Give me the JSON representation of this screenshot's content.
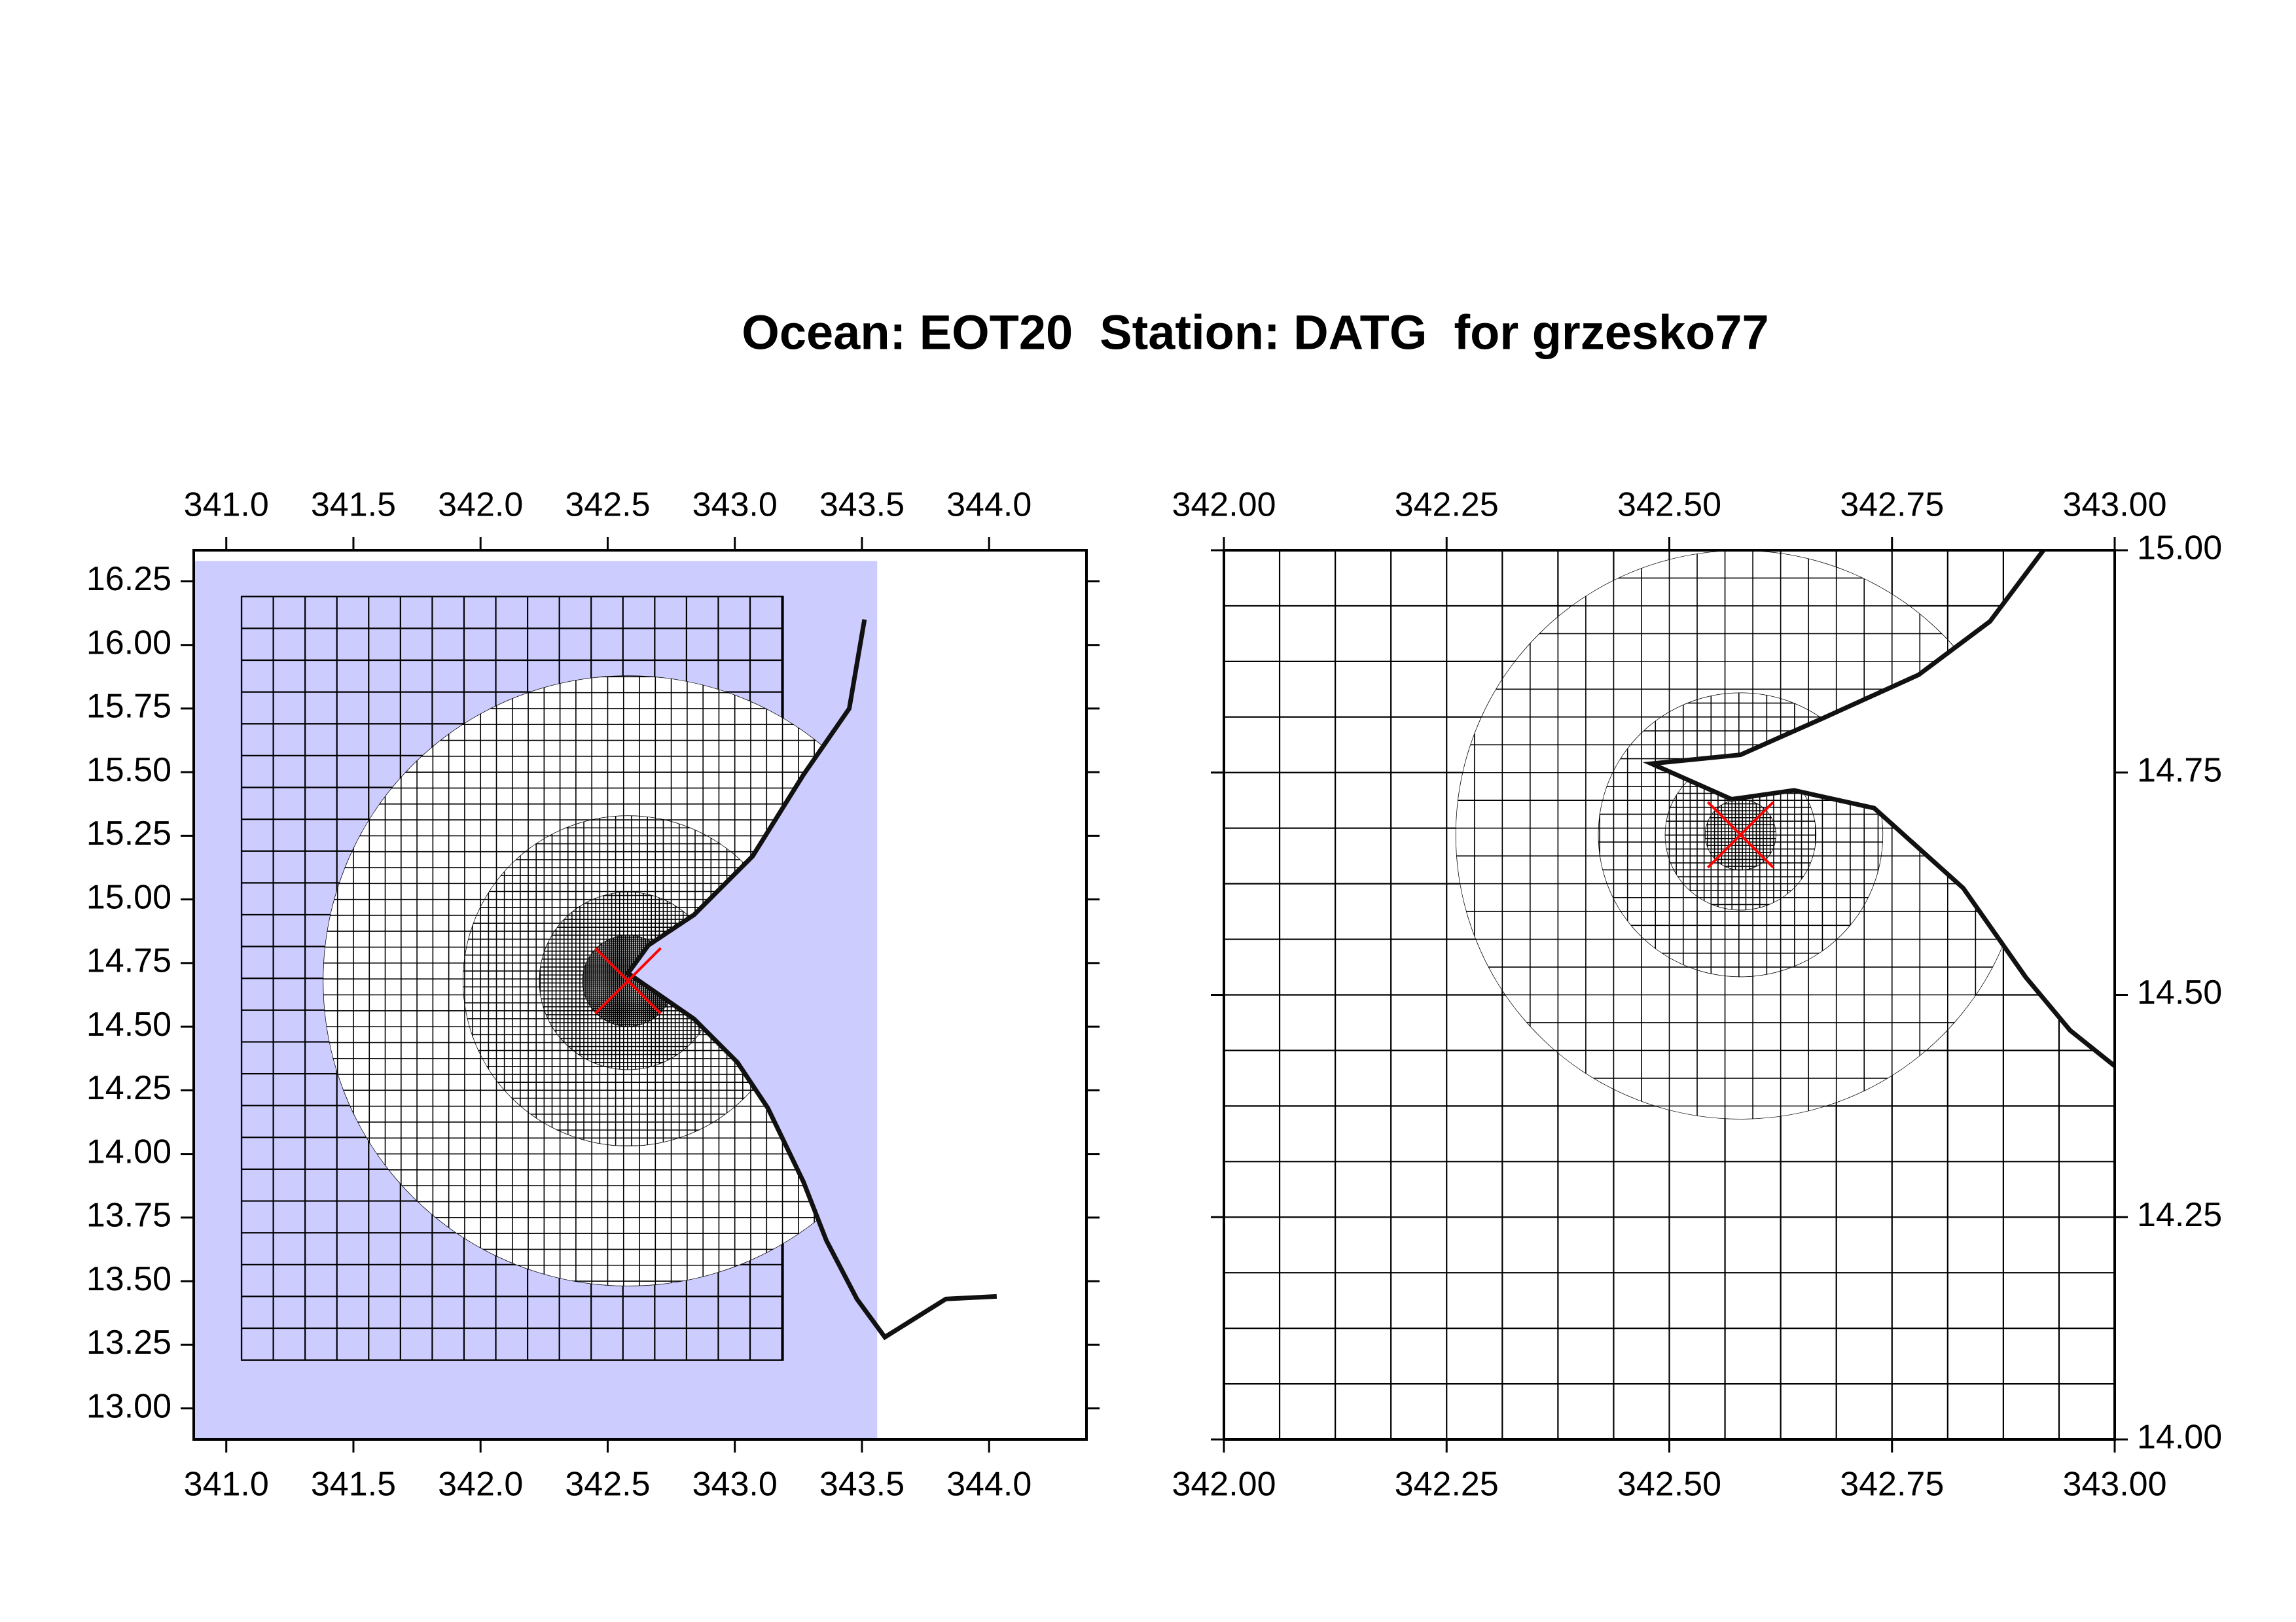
{
  "title": "Ocean: EOT20  Station: DATG  for grzesko77",
  "chart_data": [
    {
      "type": "mesh",
      "xlim": [
        340.872,
        344.383
      ],
      "ylim": [
        12.878,
        16.372
      ],
      "xticks": [
        {
          "value": 341,
          "label": "341.0"
        },
        341.5,
        {
          "value": 342,
          "label": "342.0"
        },
        342.5,
        {
          "value": 343,
          "label": "343.0"
        },
        343.5,
        {
          "value": 344,
          "label": "344.0"
        }
      ],
      "yticks": [
        {
          "value": 13,
          "label": "13.00"
        },
        13.25,
        {
          "value": 13.5,
          "label": "13.50"
        },
        13.75,
        {
          "value": 14,
          "label": "14.00"
        },
        14.25,
        {
          "value": 14.5,
          "label": "14.50"
        },
        14.75,
        {
          "value": 15,
          "label": "15.00"
        },
        15.25,
        {
          "value": 15.5,
          "label": "15.50"
        },
        15.75,
        {
          "value": 16,
          "label": "16.00"
        },
        16.25
      ],
      "y_axis_side": "left",
      "shaded_region": {
        "xlim": [
          340.872,
          343.56
        ],
        "ylim": [
          12.878,
          16.33
        ],
        "color": "#ccccff"
      },
      "mesh_region": {
        "xlim": [
          341.06,
          343.19
        ],
        "ylim": [
          13.19,
          16.19
        ],
        "spacing": 0.125
      },
      "refinements": [
        {
          "spacing": 0.0625,
          "radius": 1.2
        },
        {
          "spacing": 0.03125,
          "radius": 0.65
        },
        {
          "spacing": 0.015625,
          "radius": 0.35
        },
        {
          "spacing": 0.0078125,
          "radius": 0.18
        }
      ],
      "coastline": {
        "x": [
          343.51,
          343.45,
          343.27,
          343.07,
          342.84,
          342.66,
          342.58,
          342.84,
          343.01,
          343.13,
          343.27,
          343.36,
          343.48,
          343.59,
          343.83,
          344.03
        ],
        "y": [
          16.1,
          15.75,
          15.49,
          15.17,
          14.94,
          14.82,
          14.71,
          14.53,
          14.36,
          14.18,
          13.89,
          13.66,
          13.43,
          13.28,
          13.43,
          13.44
        ]
      },
      "station": {
        "x": 342.58,
        "y": 14.68,
        "color": "#ff0000"
      }
    },
    {
      "type": "mesh",
      "xlim": [
        342,
        343
      ],
      "ylim": [
        14,
        15
      ],
      "xticks": [
        {
          "value": 342,
          "label": "342.00"
        },
        342.25,
        {
          "value": 342.5,
          "label": "342.50"
        },
        342.75,
        {
          "value": 343,
          "label": "343.00"
        }
      ],
      "yticks": [
        {
          "value": 14,
          "label": "14.00"
        },
        14.25,
        {
          "value": 14.5,
          "label": "14.50"
        },
        14.75,
        {
          "value": 15,
          "label": "15.00"
        }
      ],
      "y_axis_side": "right",
      "mesh_region": {
        "xlim": [
          342,
          343
        ],
        "ylim": [
          14,
          15
        ],
        "spacing": 0.0625
      },
      "refinements": [
        {
          "spacing": 0.03125,
          "radius": 0.32
        },
        {
          "spacing": 0.015625,
          "radius": 0.16
        },
        {
          "spacing": 0.0078125,
          "radius": 0.085
        },
        {
          "spacing": 0.00390625,
          "radius": 0.04
        }
      ],
      "coastline": {
        "x": [
          342.92,
          342.86,
          342.78,
          342.67,
          342.58,
          342.48,
          342.57,
          342.64,
          342.73,
          342.83,
          342.9,
          342.95,
          343
        ],
        "y": [
          15,
          14.92,
          14.86,
          14.81,
          14.77,
          14.76,
          14.72,
          14.73,
          14.71,
          14.62,
          14.52,
          14.46,
          14.42
        ]
      },
      "station": {
        "x": 342.58,
        "y": 14.68,
        "color": "#ff0000"
      }
    }
  ]
}
